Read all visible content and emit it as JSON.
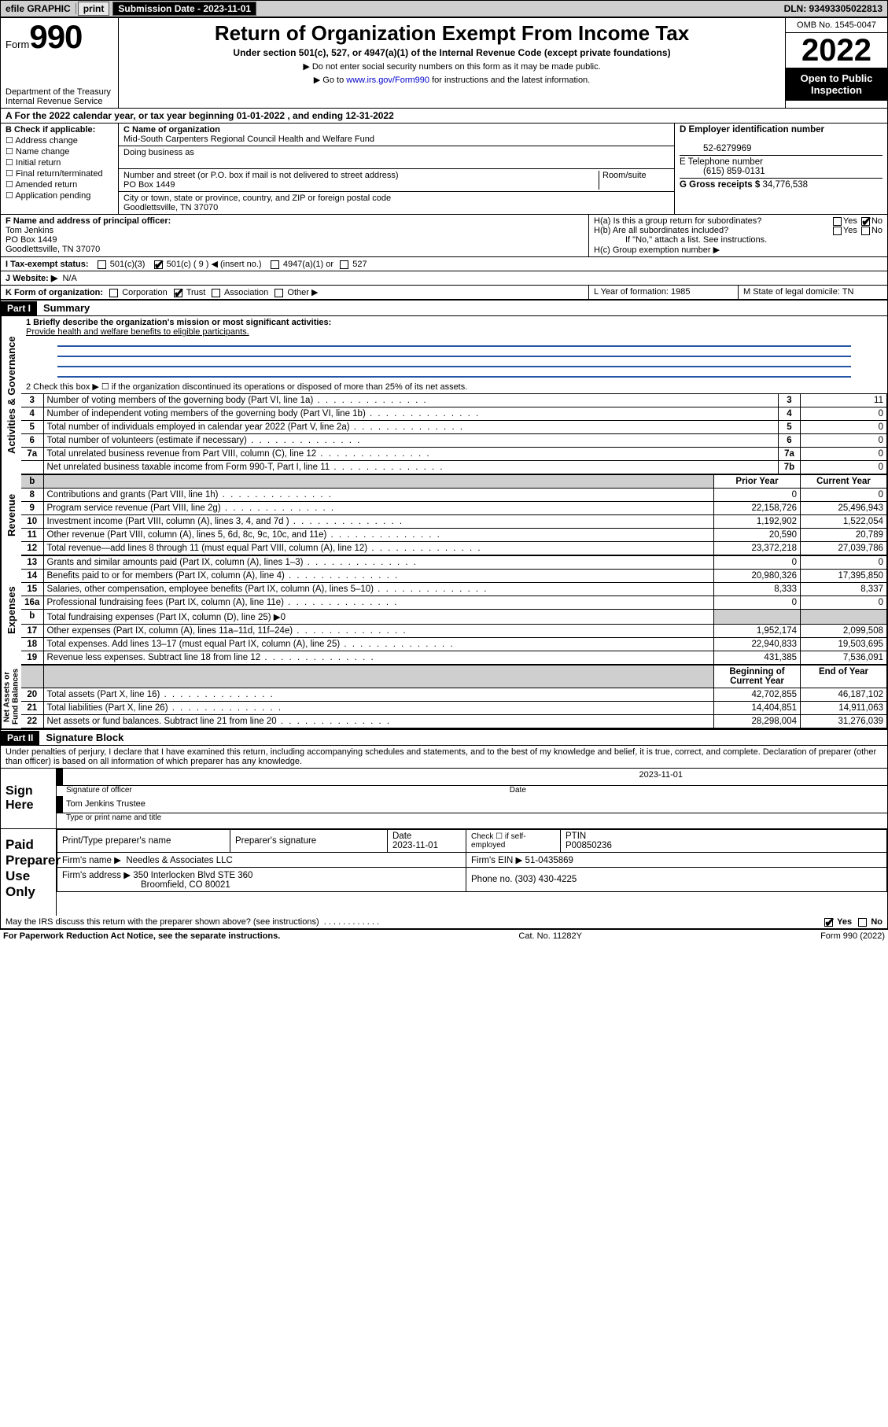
{
  "topbar": {
    "efile": "efile GRAPHIC",
    "print": "print",
    "sub_label": "Submission Date - 2023-11-01",
    "dln": "DLN: 93493305022813"
  },
  "header": {
    "form_word": "Form",
    "form_num": "990",
    "dept": "Department of the Treasury\nInternal Revenue Service",
    "title": "Return of Organization Exempt From Income Tax",
    "subtitle": "Under section 501(c), 527, or 4947(a)(1) of the Internal Revenue Code (except private foundations)",
    "note1": "▶ Do not enter social security numbers on this form as it may be made public.",
    "note2_pre": "▶ Go to ",
    "note2_link": "www.irs.gov/Form990",
    "note2_post": " for instructions and the latest information.",
    "omb": "OMB No. 1545-0047",
    "year": "2022",
    "openpub": "Open to Public Inspection"
  },
  "A": {
    "line": "A For the 2022 calendar year, or tax year beginning 01-01-2022   , and ending 12-31-2022"
  },
  "B": {
    "label": "B Check if applicable:",
    "opts": [
      "Address change",
      "Name change",
      "Initial return",
      "Final return/terminated",
      "Amended return",
      "Application pending"
    ]
  },
  "C": {
    "name_label": "C Name of organization",
    "name": "Mid-South Carpenters Regional Council Health and Welfare Fund",
    "dba_label": "Doing business as",
    "dba": "",
    "street_label": "Number and street (or P.O. box if mail is not delivered to street address)",
    "room_label": "Room/suite",
    "street": "PO Box 1449",
    "city_label": "City or town, state or province, country, and ZIP or foreign postal code",
    "city": "Goodlettsville, TN  37070"
  },
  "D": {
    "label": "D Employer identification number",
    "value": "52-6279969"
  },
  "E": {
    "label": "E Telephone number",
    "value": "(615) 859-0131"
  },
  "G": {
    "label": "G Gross receipts $",
    "value": "34,776,538"
  },
  "F": {
    "label": "F  Name and address of principal officer:",
    "name": "Tom Jenkins",
    "addr1": "PO Box 1449",
    "addr2": "Goodlettsville, TN  37070"
  },
  "H": {
    "a": "H(a)  Is this a group return for subordinates?",
    "a_yes": "Yes",
    "a_no": "No",
    "b": "H(b)  Are all subordinates included?",
    "b_note": "If \"No,\" attach a list. See instructions.",
    "c": "H(c)  Group exemption number ▶"
  },
  "I": {
    "label": "I    Tax-exempt status:",
    "o1": "501(c)(3)",
    "o2": "501(c) ( 9 ) ◀ (insert no.)",
    "o3": "4947(a)(1) or",
    "o4": "527"
  },
  "J": {
    "label": "J   Website: ▶",
    "value": "N/A"
  },
  "K": {
    "label": "K Form of organization:",
    "o1": "Corporation",
    "o2": "Trust",
    "o3": "Association",
    "o4": "Other ▶"
  },
  "L": {
    "label": "L Year of formation: 1985"
  },
  "M": {
    "label": "M State of legal domicile: TN"
  },
  "part1": {
    "hdr": "Part I",
    "title": "Summary"
  },
  "summary": {
    "l1a": "1   Briefly describe the organization's mission or most significant activities:",
    "l1b": "Provide health and welfare benefits to eligible participants.",
    "l2": "2   Check this box ▶ ☐  if the organization discontinued its operations or disposed of more than 25% of its net assets.",
    "rows_ag": [
      {
        "n": "3",
        "t": "Number of voting members of the governing body (Part VI, line 1a)",
        "b": "3",
        "v": "11"
      },
      {
        "n": "4",
        "t": "Number of independent voting members of the governing body (Part VI, line 1b)",
        "b": "4",
        "v": "0"
      },
      {
        "n": "5",
        "t": "Total number of individuals employed in calendar year 2022 (Part V, line 2a)",
        "b": "5",
        "v": "0"
      },
      {
        "n": "6",
        "t": "Total number of volunteers (estimate if necessary)",
        "b": "6",
        "v": "0"
      },
      {
        "n": "7a",
        "t": "Total unrelated business revenue from Part VIII, column (C), line 12",
        "b": "7a",
        "v": "0"
      },
      {
        "n": "",
        "t": "Net unrelated business taxable income from Form 990-T, Part I, line 11",
        "b": "7b",
        "v": "0"
      }
    ],
    "col_prior": "Prior Year",
    "col_curr": "Current Year",
    "rev": [
      {
        "n": "8",
        "t": "Contributions and grants (Part VIII, line 1h)",
        "p": "0",
        "c": "0"
      },
      {
        "n": "9",
        "t": "Program service revenue (Part VIII, line 2g)",
        "p": "22,158,726",
        "c": "25,496,943"
      },
      {
        "n": "10",
        "t": "Investment income (Part VIII, column (A), lines 3, 4, and 7d )",
        "p": "1,192,902",
        "c": "1,522,054"
      },
      {
        "n": "11",
        "t": "Other revenue (Part VIII, column (A), lines 5, 6d, 8c, 9c, 10c, and 11e)",
        "p": "20,590",
        "c": "20,789"
      },
      {
        "n": "12",
        "t": "Total revenue—add lines 8 through 11 (must equal Part VIII, column (A), line 12)",
        "p": "23,372,218",
        "c": "27,039,786"
      }
    ],
    "exp": [
      {
        "n": "13",
        "t": "Grants and similar amounts paid (Part IX, column (A), lines 1–3)",
        "p": "0",
        "c": "0"
      },
      {
        "n": "14",
        "t": "Benefits paid to or for members (Part IX, column (A), line 4)",
        "p": "20,980,326",
        "c": "17,395,850"
      },
      {
        "n": "15",
        "t": "Salaries, other compensation, employee benefits (Part IX, column (A), lines 5–10)",
        "p": "8,333",
        "c": "8,337"
      },
      {
        "n": "16a",
        "t": "Professional fundraising fees (Part IX, column (A), line 11e)",
        "p": "0",
        "c": "0"
      },
      {
        "n": "b",
        "t": "Total fundraising expenses (Part IX, column (D), line 25) ▶0",
        "p": "",
        "c": "",
        "shade": true
      },
      {
        "n": "17",
        "t": "Other expenses (Part IX, column (A), lines 11a–11d, 11f–24e)",
        "p": "1,952,174",
        "c": "2,099,508"
      },
      {
        "n": "18",
        "t": "Total expenses. Add lines 13–17 (must equal Part IX, column (A), line 25)",
        "p": "22,940,833",
        "c": "19,503,695"
      },
      {
        "n": "19",
        "t": "Revenue less expenses. Subtract line 18 from line 12",
        "p": "431,385",
        "c": "7,536,091"
      }
    ],
    "na_hdr_p": "Beginning of Current Year",
    "na_hdr_c": "End of Year",
    "na": [
      {
        "n": "20",
        "t": "Total assets (Part X, line 16)",
        "p": "42,702,855",
        "c": "46,187,102"
      },
      {
        "n": "21",
        "t": "Total liabilities (Part X, line 26)",
        "p": "14,404,851",
        "c": "14,911,063"
      },
      {
        "n": "22",
        "t": "Net assets or fund balances. Subtract line 21 from line 20",
        "p": "28,298,004",
        "c": "31,276,039"
      }
    ]
  },
  "part2": {
    "hdr": "Part II",
    "title": "Signature Block",
    "decl": "Under penalties of perjury, I declare that I have examined this return, including accompanying schedules and statements, and to the best of my knowledge and belief, it is true, correct, and complete. Declaration of preparer (other than officer) is based on all information of which preparer has any knowledge."
  },
  "sign": {
    "label": "Sign Here",
    "sig_of": "Signature of officer",
    "date": "2023-11-01",
    "name": "Tom Jenkins  Trustee",
    "name_lbl": "Type or print name and title"
  },
  "prep": {
    "label": "Paid Preparer Use Only",
    "h1": "Print/Type preparer's name",
    "h2": "Preparer's signature",
    "h3": "Date",
    "h3v": "2023-11-01",
    "h4": "Check ☐ if self-employed",
    "h5": "PTIN",
    "h5v": "P00850236",
    "firm_lbl": "Firm's name    ▶",
    "firm": "Needles & Associates LLC",
    "ein_lbl": "Firm's EIN ▶",
    "ein": "51-0435869",
    "addr_lbl": "Firm's address ▶",
    "addr1": "350 Interlocken Blvd STE 360",
    "addr2": "Broomfield, CO  80021",
    "ph_lbl": "Phone no.",
    "ph": "(303) 430-4225",
    "discuss": "May the IRS discuss this return with the preparer shown above? (see instructions)",
    "yes": "Yes",
    "no": "No"
  },
  "footer": {
    "left": "For Paperwork Reduction Act Notice, see the separate instructions.",
    "mid": "Cat. No. 11282Y",
    "right": "Form 990 (2022)"
  }
}
